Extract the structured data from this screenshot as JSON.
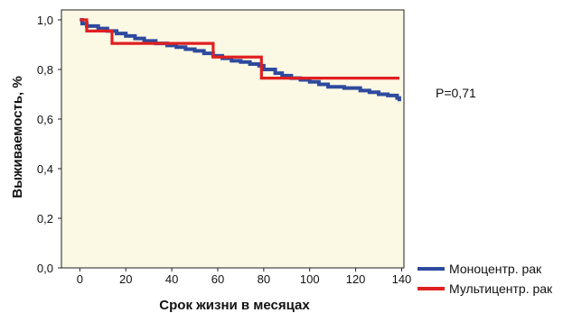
{
  "chart_data": {
    "type": "line",
    "subtype": "kaplan-meier-step",
    "xlabel": "Срок жизни в месяцах",
    "ylabel": "Выживаемость, %",
    "xlim": [
      -8,
      141
    ],
    "ylim": [
      0,
      1.04
    ],
    "x_ticks": [
      0,
      20,
      40,
      60,
      80,
      100,
      120,
      140
    ],
    "x_tick_labels": [
      "0",
      "20",
      "40",
      "60",
      "80",
      "100",
      "120",
      "140"
    ],
    "y_ticks": [
      0.0,
      0.2,
      0.4,
      0.6,
      0.8,
      1.0
    ],
    "y_tick_labels": [
      "0,0",
      "0,2",
      "0,4",
      "0,6",
      "0,8",
      "1,0"
    ],
    "grid": false,
    "plot_background": "#fbf8e4",
    "legend_position": "bottom-right",
    "annotation": "P=0,71",
    "series": [
      {
        "name": "Моноцентр. рак",
        "color": "#2e4a9e",
        "points": [
          [
            0,
            1.0
          ],
          [
            1,
            0.985
          ],
          [
            3,
            0.975
          ],
          [
            8,
            0.965
          ],
          [
            12,
            0.955
          ],
          [
            16,
            0.945
          ],
          [
            20,
            0.935
          ],
          [
            24,
            0.925
          ],
          [
            28,
            0.915
          ],
          [
            33,
            0.905
          ],
          [
            38,
            0.897
          ],
          [
            42,
            0.89
          ],
          [
            46,
            0.882
          ],
          [
            50,
            0.875
          ],
          [
            54,
            0.865
          ],
          [
            58,
            0.855
          ],
          [
            62,
            0.845
          ],
          [
            66,
            0.835
          ],
          [
            70,
            0.83
          ],
          [
            74,
            0.822
          ],
          [
            78,
            0.815
          ],
          [
            80,
            0.8
          ],
          [
            85,
            0.785
          ],
          [
            88,
            0.775
          ],
          [
            92,
            0.765
          ],
          [
            96,
            0.758
          ],
          [
            100,
            0.75
          ],
          [
            104,
            0.74
          ],
          [
            108,
            0.73
          ],
          [
            115,
            0.725
          ],
          [
            122,
            0.715
          ],
          [
            126,
            0.708
          ],
          [
            130,
            0.7
          ],
          [
            134,
            0.695
          ],
          [
            138,
            0.685
          ],
          [
            139,
            0.672
          ]
        ]
      },
      {
        "name": "Мультицентр. рак",
        "color": "#e02020",
        "points": [
          [
            0,
            1.0
          ],
          [
            3,
            0.955
          ],
          [
            14,
            0.905
          ],
          [
            58,
            0.85
          ],
          [
            79,
            0.765
          ],
          [
            139,
            0.765
          ]
        ]
      }
    ]
  }
}
